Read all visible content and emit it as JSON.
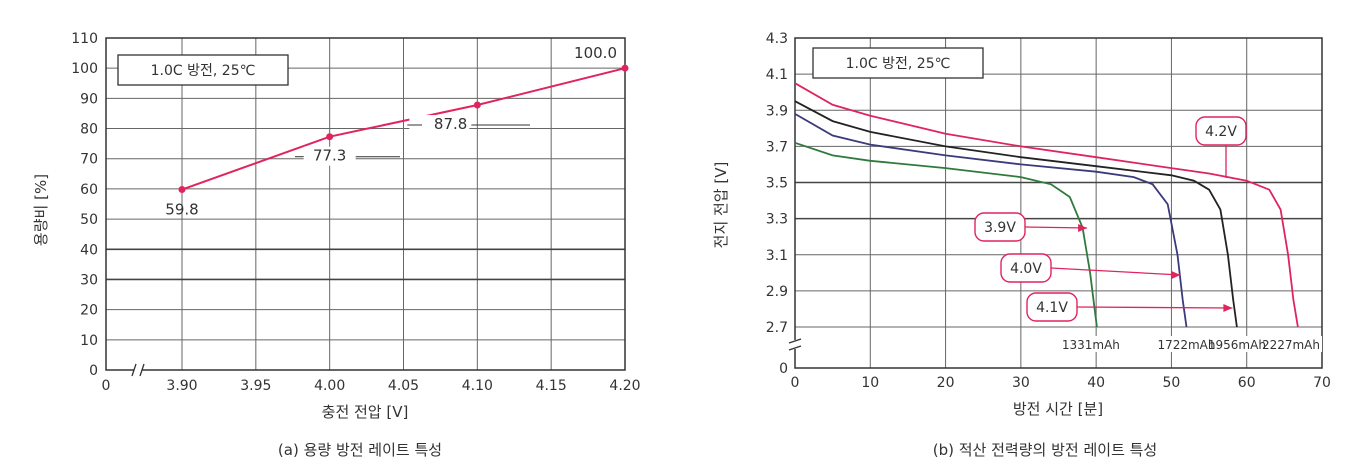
{
  "chart_data": [
    {
      "type": "line",
      "caption": "(a) 용량 방전 레이트 특성",
      "condition": "1.0C 방전, 25℃",
      "xlabel": "충전 전압 [V]",
      "ylabel": "용량비 [%]",
      "x_ticks": [
        "0",
        "3.90",
        "3.95",
        "4.00",
        "4.05",
        "4.10",
        "4.15",
        "4.20"
      ],
      "y_ticks": [
        "0",
        "10",
        "20",
        "30",
        "40",
        "50",
        "60",
        "70",
        "80",
        "90",
        "100",
        "110"
      ],
      "xlim": [
        3.85,
        4.2
      ],
      "ylim": [
        0,
        110
      ],
      "grid": true,
      "x_axis_break": true,
      "series": [
        {
          "color": "#e0245e",
          "points": [
            {
              "x": 3.9,
              "y": 59.8,
              "label": "59.8"
            },
            {
              "x": 4.0,
              "y": 77.3,
              "label": "77.3"
            },
            {
              "x": 4.1,
              "y": 87.8,
              "label": "87.8"
            },
            {
              "x": 4.2,
              "y": 100.0,
              "label": "100.0"
            }
          ]
        }
      ]
    },
    {
      "type": "line",
      "caption": "(b) 적산 전력량의 방전 레이트 특성",
      "condition": "1.0C 방전, 25℃",
      "xlabel": "방전 시간 [분]",
      "ylabel": "전지 전압 [V]",
      "x_ticks": [
        "0",
        "10",
        "20",
        "30",
        "40",
        "50",
        "60",
        "70"
      ],
      "y_ticks": [
        "0",
        "2.7",
        "2.9",
        "3.1",
        "3.3",
        "3.5",
        "3.7",
        "3.9",
        "4.1",
        "4.3"
      ],
      "xlim": [
        0,
        70
      ],
      "ylim": [
        2.6,
        4.3
      ],
      "grid": true,
      "y_axis_break": true,
      "series": [
        {
          "name": "4.2V",
          "color": "#e0245e",
          "capacity": "2227mAh",
          "x": [
            0,
            5,
            10,
            20,
            30,
            40,
            50,
            55,
            60,
            63,
            64.5,
            65.5,
            66.2,
            66.8
          ],
          "y": [
            4.05,
            3.93,
            3.87,
            3.77,
            3.7,
            3.64,
            3.58,
            3.55,
            3.51,
            3.46,
            3.35,
            3.1,
            2.85,
            2.7
          ]
        },
        {
          "name": "4.1V",
          "color": "#222222",
          "capacity": "1956mAh",
          "x": [
            0,
            5,
            10,
            20,
            30,
            40,
            50,
            53,
            55,
            56.5,
            57.5,
            58.2,
            58.7
          ],
          "y": [
            3.95,
            3.84,
            3.78,
            3.7,
            3.64,
            3.59,
            3.54,
            3.51,
            3.46,
            3.35,
            3.1,
            2.85,
            2.7
          ]
        },
        {
          "name": "4.0V",
          "color": "#3b3a7a",
          "capacity": "1722mAh",
          "x": [
            0,
            5,
            10,
            20,
            30,
            40,
            45,
            47.5,
            49.5,
            50.8,
            51.5,
            52
          ],
          "y": [
            3.88,
            3.76,
            3.71,
            3.65,
            3.6,
            3.56,
            3.53,
            3.49,
            3.38,
            3.1,
            2.85,
            2.7
          ]
        },
        {
          "name": "3.9V",
          "color": "#2f7a3c",
          "capacity": "1331mAh",
          "x": [
            0,
            5,
            10,
            20,
            30,
            34,
            36.5,
            38.2,
            39.2,
            39.8,
            40.1
          ],
          "y": [
            3.72,
            3.65,
            3.62,
            3.58,
            3.53,
            3.49,
            3.42,
            3.25,
            3.0,
            2.8,
            2.7
          ]
        }
      ],
      "callouts": [
        {
          "label": "4.2V",
          "series": "4.2V"
        },
        {
          "label": "3.9V",
          "series": "3.9V"
        },
        {
          "label": "4.0V",
          "series": "4.0V"
        },
        {
          "label": "4.1V",
          "series": "4.1V"
        }
      ]
    }
  ]
}
